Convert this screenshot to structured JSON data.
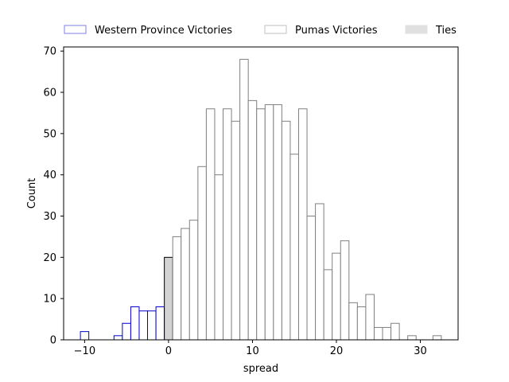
{
  "chart_data": {
    "type": "bar",
    "xlabel": "spread",
    "ylabel": "Count",
    "xlim": [
      -12.5,
      34.5
    ],
    "ylim": [
      0,
      71
    ],
    "xticks": [
      -10,
      0,
      10,
      20,
      30
    ],
    "yticks": [
      0,
      10,
      20,
      30,
      40,
      50,
      60,
      70
    ],
    "legend": {
      "position": "top",
      "entries": [
        "Western Province Victories",
        "Pumas Victories",
        "Ties"
      ]
    },
    "colors": {
      "western_edge": "#0000cc",
      "western_legend": "#7f7fe6",
      "pumas_edge": "#808080",
      "pumas_legend": "#bfbfbf",
      "ties_fill": "#d3d3d3",
      "ties_legend": "#e0e0e0"
    },
    "series": [
      {
        "name": "Western Province Victories",
        "bins": [
          [
            -10,
            2
          ],
          [
            -9,
            0
          ],
          [
            -8,
            0
          ],
          [
            -7,
            0
          ],
          [
            -6,
            1
          ],
          [
            -5,
            4
          ],
          [
            -4,
            8
          ],
          [
            -3,
            7
          ],
          [
            -2,
            7
          ],
          [
            -1,
            8
          ]
        ]
      },
      {
        "name": "Ties",
        "bins": [
          [
            0,
            20
          ]
        ]
      },
      {
        "name": "Pumas Victories",
        "bins": [
          [
            1,
            25
          ],
          [
            2,
            27
          ],
          [
            3,
            29
          ],
          [
            4,
            42
          ],
          [
            5,
            56
          ],
          [
            6,
            40
          ],
          [
            7,
            56
          ],
          [
            8,
            53
          ],
          [
            9,
            68
          ],
          [
            10,
            58
          ],
          [
            11,
            56
          ],
          [
            12,
            57
          ],
          [
            13,
            57
          ],
          [
            14,
            53
          ],
          [
            15,
            45
          ],
          [
            16,
            56
          ],
          [
            17,
            30
          ],
          [
            18,
            33
          ],
          [
            19,
            17
          ],
          [
            20,
            21
          ],
          [
            21,
            24
          ],
          [
            22,
            9
          ],
          [
            23,
            8
          ],
          [
            24,
            11
          ],
          [
            25,
            3
          ],
          [
            26,
            3
          ],
          [
            27,
            4
          ],
          [
            28,
            0
          ],
          [
            29,
            1
          ],
          [
            30,
            0
          ],
          [
            31,
            0
          ],
          [
            32,
            1
          ]
        ]
      }
    ]
  }
}
